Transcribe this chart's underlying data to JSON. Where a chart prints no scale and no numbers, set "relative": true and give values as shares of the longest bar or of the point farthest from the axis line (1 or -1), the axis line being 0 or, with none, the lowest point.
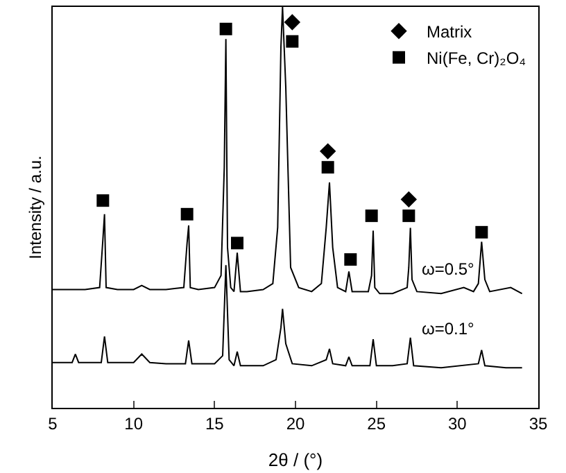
{
  "chart_data": {
    "type": "line",
    "relative": true,
    "xlabel": "2θ / (°)",
    "ylabel": "Intensity / a.u.",
    "xlim": [
      5,
      35
    ],
    "xticks": [
      5,
      10,
      15,
      20,
      25,
      30,
      35
    ],
    "tick_labels": "x",
    "legend": "top right",
    "series": [
      {
        "color": "#000000",
        "x": [
          5,
          6,
          7,
          7.9,
          8.1,
          8.2,
          8.3,
          9,
          10,
          10.5,
          11,
          12,
          13.1,
          13.3,
          13.4,
          13.5,
          14,
          15,
          15.4,
          15.6,
          15.7,
          15.8,
          16,
          16.2,
          16.4,
          16.6,
          17,
          18,
          18.6,
          18.9,
          19.1,
          19.2,
          19.4,
          19.7,
          20.2,
          21,
          21.6,
          21.9,
          22.1,
          22.3,
          22.6,
          23.1,
          23.3,
          23.5,
          24.5,
          24.7,
          24.8,
          24.9,
          25.2,
          26,
          26.9,
          27.0,
          27.1,
          27.2,
          27.5,
          29,
          30.4,
          31,
          31.3,
          31.5,
          31.7,
          32,
          33.3,
          34
        ],
        "values": [
          0.295,
          0.295,
          0.295,
          0.3,
          0.42,
          0.483,
          0.3,
          0.295,
          0.295,
          0.305,
          0.295,
          0.295,
          0.3,
          0.41,
          0.455,
          0.3,
          0.295,
          0.3,
          0.33,
          0.6,
          0.92,
          0.4,
          0.3,
          0.29,
          0.387,
          0.29,
          0.29,
          0.295,
          0.31,
          0.45,
          0.9,
          1.0,
          0.8,
          0.35,
          0.3,
          0.29,
          0.31,
          0.45,
          0.562,
          0.4,
          0.3,
          0.29,
          0.34,
          0.29,
          0.29,
          0.33,
          0.442,
          0.3,
          0.285,
          0.285,
          0.3,
          0.35,
          0.449,
          0.32,
          0.29,
          0.285,
          0.3,
          0.29,
          0.31,
          0.414,
          0.32,
          0.29,
          0.3,
          0.285
        ]
      },
      {
        "color": "#000000",
        "x": [
          5,
          6.2,
          6.4,
          6.6,
          7,
          8.0,
          8.2,
          8.4,
          9,
          10,
          10.5,
          11,
          12,
          13.2,
          13.4,
          13.6,
          14,
          15,
          15.5,
          15.7,
          15.9,
          16.2,
          16.4,
          16.6,
          17,
          18,
          18.8,
          19.1,
          19.2,
          19.4,
          19.8,
          21,
          21.9,
          22.1,
          22.3,
          23.1,
          23.3,
          23.5,
          24.6,
          24.8,
          25.0,
          26,
          26.9,
          27.1,
          27.3,
          29,
          31.3,
          31.5,
          31.7,
          33,
          34
        ],
        "values": [
          0.113,
          0.113,
          0.134,
          0.113,
          0.113,
          0.113,
          0.178,
          0.113,
          0.113,
          0.113,
          0.134,
          0.113,
          0.11,
          0.11,
          0.168,
          0.11,
          0.11,
          0.11,
          0.13,
          0.356,
          0.12,
          0.105,
          0.14,
          0.105,
          0.105,
          0.105,
          0.12,
          0.2,
          0.247,
          0.16,
          0.11,
          0.105,
          0.12,
          0.147,
          0.11,
          0.105,
          0.127,
          0.105,
          0.105,
          0.171,
          0.105,
          0.105,
          0.11,
          0.175,
          0.105,
          0.1,
          0.11,
          0.144,
          0.105,
          0.1,
          0.1
        ]
      },
      {
        "type": "scatter",
        "name": "Matrix",
        "marker": "diamond",
        "color": "#000000",
        "x": [
          19.8,
          22.0,
          27.0
        ],
        "values": [
          0.962,
          0.64,
          0.52
        ]
      },
      {
        "type": "scatter",
        "name": "Ni(Fe, Cr)₂O₄",
        "marker": "square",
        "color": "#000000",
        "x": [
          8.1,
          13.3,
          15.7,
          16.4,
          19.8,
          22.0,
          23.4,
          24.7,
          27.0,
          31.5
        ],
        "values": [
          0.517,
          0.483,
          0.945,
          0.411,
          0.914,
          0.6,
          0.37,
          0.479,
          0.479,
          0.438
        ]
      }
    ],
    "annotations": [
      "ω=0.5°",
      "ω=0.1°"
    ]
  }
}
